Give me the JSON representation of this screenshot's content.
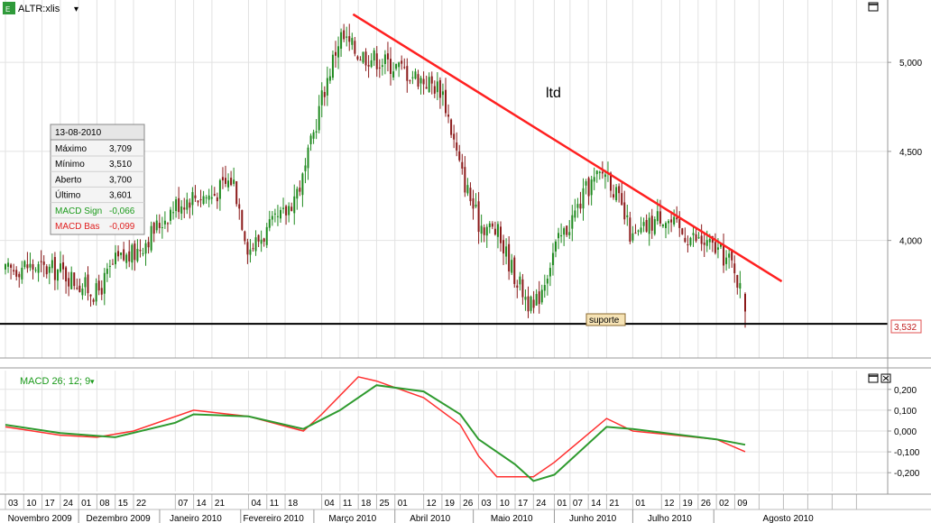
{
  "header": {
    "symbol_icon": "spreadsheet-icon",
    "symbol_label": "ALTR:xlis",
    "dropdown_glyph": "▾",
    "maximize_glyph": "▭"
  },
  "info_box": {
    "date": "13-08-2010",
    "rows": [
      {
        "label": "Máximo",
        "value": "3,709",
        "color": "#000000"
      },
      {
        "label": "Mínimo",
        "value": "3,510",
        "color": "#000000"
      },
      {
        "label": "Aberto",
        "value": "3,700",
        "color": "#000000"
      },
      {
        "label": "Último",
        "value": "3,601",
        "color": "#000000"
      },
      {
        "label": "MACD Sign",
        "value": "-0,066",
        "color": "#1a9a1a"
      },
      {
        "label": "MACD Bas",
        "value": "-0,099",
        "color": "#e02020"
      }
    ]
  },
  "annotations": {
    "trendline_label": "ltd",
    "support_label": "suporte",
    "support_price_label": "3,532"
  },
  "macd_panel": {
    "title": "MACD 26; 12; 9",
    "title_color": "#1a9a1a",
    "dropdown_glyph": "▾",
    "maximize_glyph": "▭",
    "close_glyph": "✕"
  },
  "colors": {
    "candle_up": "#1f8a1f",
    "candle_down": "#8b1a1a",
    "trendline": "#ff2020",
    "support": "#000000",
    "macd_base": "#ff3030",
    "macd_signal": "#2e9a2e"
  },
  "chart_data": {
    "type": "candlestick",
    "price_axis": {
      "ticks": [
        "5,000",
        "4,500",
        "4,000"
      ],
      "tick_values": [
        5.0,
        4.5,
        4.0
      ],
      "range": [
        3.34,
        5.35
      ]
    },
    "macd_axis": {
      "ticks": [
        "0,200",
        "0,100",
        "0,000",
        "-0,100",
        "-0,200"
      ],
      "tick_values": [
        0.2,
        0.1,
        0.0,
        -0.1,
        -0.2
      ],
      "range": [
        -0.29,
        0.29
      ]
    },
    "x_days": [
      "03",
      "10",
      "17",
      "24",
      "01",
      "08",
      "15",
      "22",
      "07",
      "14",
      "21",
      "04",
      "11",
      "18",
      "04",
      "11",
      "18",
      "25",
      "01",
      "12",
      "19",
      "26",
      "03",
      "10",
      "17",
      "24",
      "01",
      "07",
      "14",
      "21",
      "01",
      "12",
      "19",
      "26",
      "02",
      "09"
    ],
    "x_months": [
      "Novembro 2009",
      "Dezembro 2009",
      "Janeiro 2010",
      "Fevereiro 2010",
      "Março 2010",
      "Abril 2010",
      "Maio 2010",
      "Junho 2010",
      "Julho 2010",
      "Agosto 2010"
    ],
    "price_path": [
      [
        "2009-11-03",
        3.82
      ],
      [
        "2009-11-10",
        3.86
      ],
      [
        "2009-11-17",
        3.84
      ],
      [
        "2009-11-24",
        3.83
      ],
      [
        "2009-12-01",
        3.76
      ],
      [
        "2009-12-08",
        3.7
      ],
      [
        "2009-12-15",
        3.88
      ],
      [
        "2009-12-22",
        3.92
      ],
      [
        "2010-01-07",
        4.2
      ],
      [
        "2010-01-14",
        4.25
      ],
      [
        "2010-01-21",
        4.25
      ],
      [
        "2010-01-29",
        4.35
      ],
      [
        "2010-02-04",
        3.95
      ],
      [
        "2010-02-11",
        4.05
      ],
      [
        "2010-02-18",
        4.15
      ],
      [
        "2010-02-25",
        4.35
      ],
      [
        "2010-03-04",
        4.8
      ],
      [
        "2010-03-11",
        5.15
      ],
      [
        "2010-03-18",
        5.05
      ],
      [
        "2010-03-25",
        5.02
      ],
      [
        "2010-04-01",
        4.98
      ],
      [
        "2010-04-12",
        4.9
      ],
      [
        "2010-04-19",
        4.85
      ],
      [
        "2010-04-26",
        4.4
      ],
      [
        "2010-05-03",
        4.1
      ],
      [
        "2010-05-10",
        4.05
      ],
      [
        "2010-05-17",
        3.8
      ],
      [
        "2010-05-24",
        3.6
      ],
      [
        "2010-06-01",
        3.95
      ],
      [
        "2010-06-07",
        4.1
      ],
      [
        "2010-06-14",
        4.3
      ],
      [
        "2010-06-21",
        4.4
      ],
      [
        "2010-07-01",
        4.0
      ],
      [
        "2010-07-12",
        4.15
      ],
      [
        "2010-07-19",
        4.05
      ],
      [
        "2010-07-26",
        4.0
      ],
      [
        "2010-08-02",
        3.95
      ],
      [
        "2010-08-09",
        3.85
      ],
      [
        "2010-08-13",
        3.6
      ]
    ],
    "last_candle": {
      "date": "2010-08-13",
      "high": 3.709,
      "low": 3.51,
      "open": 3.7,
      "close": 3.601
    },
    "trendline": {
      "from": [
        "2010-03-16",
        5.27
      ],
      "to": [
        "2010-08-27",
        3.77
      ]
    },
    "support_level": 3.532,
    "macd_base_path": [
      [
        "2009-11-03",
        0.02
      ],
      [
        "2009-11-24",
        -0.02
      ],
      [
        "2009-12-08",
        -0.03
      ],
      [
        "2009-12-22",
        0.0
      ],
      [
        "2010-01-14",
        0.1
      ],
      [
        "2010-02-04",
        0.07
      ],
      [
        "2010-02-25",
        0.0
      ],
      [
        "2010-03-04",
        0.08
      ],
      [
        "2010-03-11",
        0.17
      ],
      [
        "2010-03-18",
        0.26
      ],
      [
        "2010-03-25",
        0.24
      ],
      [
        "2010-04-12",
        0.16
      ],
      [
        "2010-04-26",
        0.03
      ],
      [
        "2010-05-03",
        -0.12
      ],
      [
        "2010-05-10",
        -0.22
      ],
      [
        "2010-05-24",
        -0.22
      ],
      [
        "2010-06-01",
        -0.15
      ],
      [
        "2010-06-21",
        0.06
      ],
      [
        "2010-07-01",
        0.0
      ],
      [
        "2010-08-02",
        -0.04
      ],
      [
        "2010-08-13",
        -0.099
      ]
    ],
    "macd_signal_path": [
      [
        "2009-11-03",
        0.03
      ],
      [
        "2009-11-24",
        -0.01
      ],
      [
        "2009-12-15",
        -0.03
      ],
      [
        "2010-01-07",
        0.04
      ],
      [
        "2010-01-14",
        0.08
      ],
      [
        "2010-02-04",
        0.07
      ],
      [
        "2010-02-25",
        0.01
      ],
      [
        "2010-03-11",
        0.1
      ],
      [
        "2010-03-25",
        0.22
      ],
      [
        "2010-04-12",
        0.19
      ],
      [
        "2010-04-26",
        0.08
      ],
      [
        "2010-05-03",
        -0.04
      ],
      [
        "2010-05-17",
        -0.16
      ],
      [
        "2010-05-24",
        -0.24
      ],
      [
        "2010-06-01",
        -0.21
      ],
      [
        "2010-06-21",
        0.02
      ],
      [
        "2010-07-01",
        0.01
      ],
      [
        "2010-08-02",
        -0.04
      ],
      [
        "2010-08-13",
        -0.066
      ]
    ]
  }
}
